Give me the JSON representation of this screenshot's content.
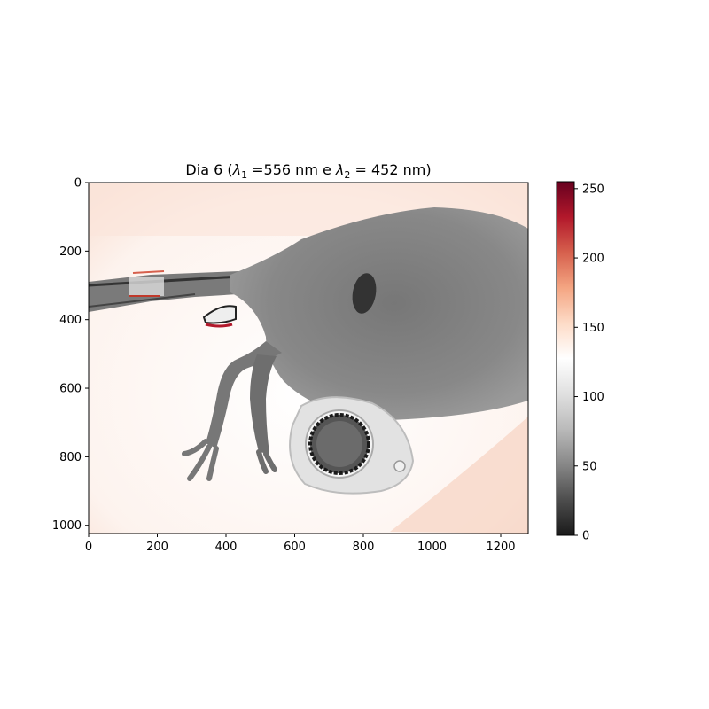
{
  "figure": {
    "title_prefix": "Dia 6 (",
    "lambda_symbol": "λ",
    "sub_1": "1",
    "title_mid_1": " =556 nm e ",
    "sub_2": "2",
    "title_mid_2": " = 452 nm)",
    "x_ticks": [
      "0",
      "200",
      "400",
      "600",
      "800",
      "1000",
      "1200"
    ],
    "y_ticks": [
      "0",
      "200",
      "400",
      "600",
      "800",
      "1000"
    ],
    "colorbar_ticks": [
      "0",
      "50",
      "100",
      "150",
      "200",
      "250"
    ],
    "colormap": "RdGy_r",
    "colorbar_colors": [
      "#1a1a1a",
      "#4d4d4d",
      "#878787",
      "#bababa",
      "#e0e0e0",
      "#ffffff",
      "#fddbc7",
      "#f4a582",
      "#d6604d",
      "#b2182b",
      "#67001f"
    ],
    "image_extent": {
      "x": [
        0,
        1280
      ],
      "y": [
        0,
        1024
      ]
    },
    "colorbar_range": [
      0,
      255
    ]
  }
}
